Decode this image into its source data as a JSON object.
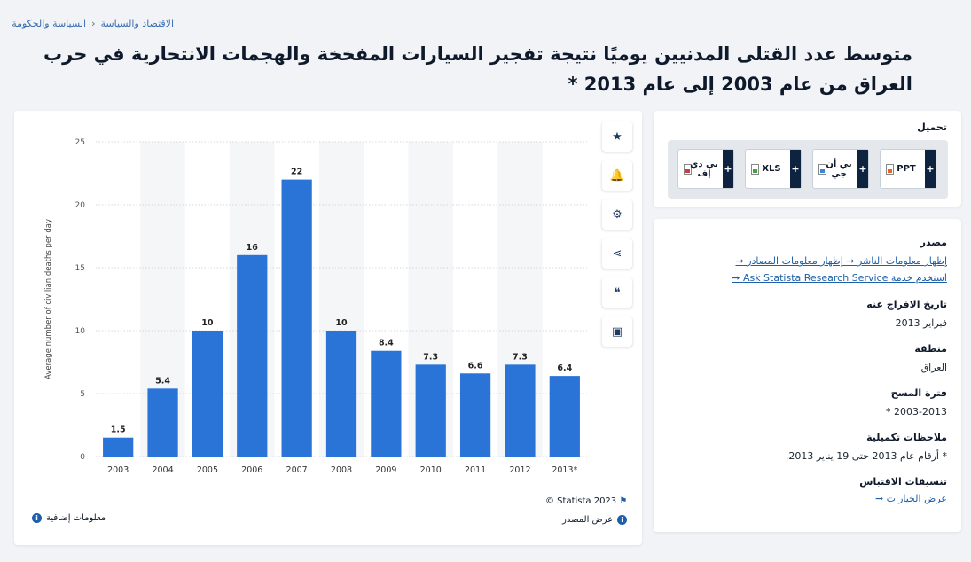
{
  "breadcrumb": {
    "items": [
      "السياسة والحكومة",
      "الاقتصاد والسياسة"
    ],
    "separator": "‹"
  },
  "page": {
    "title": "متوسط عدد القتلى المدنيين يوميًا نتيجة تفجير السيارات المفخخة والهجمات الانتحارية في حرب العراق من عام 2003 إلى عام 2013 *"
  },
  "tools": [
    {
      "icon": "star-icon",
      "glyph": "★"
    },
    {
      "icon": "bell-icon",
      "glyph": "🔔"
    },
    {
      "icon": "gear-icon",
      "glyph": "⚙"
    },
    {
      "icon": "share-icon",
      "glyph": "⋖"
    },
    {
      "icon": "quote-icon",
      "glyph": "❝"
    },
    {
      "icon": "print-icon",
      "glyph": "▣"
    }
  ],
  "chart_data": {
    "type": "bar",
    "categories": [
      "2003",
      "2004",
      "2005",
      "2006",
      "2007",
      "2008",
      "2009",
      "2010",
      "2011",
      "2012",
      "2013*"
    ],
    "values": [
      1.5,
      5.4,
      10,
      16,
      22,
      10,
      8.4,
      7.3,
      6.6,
      7.3,
      6.4
    ],
    "value_labels": [
      "1.5",
      "5.4",
      "10",
      "16",
      "22",
      "10",
      "8.4",
      "7.3",
      "6.6",
      "7.3",
      "6.4"
    ],
    "ylabel": "Average number of civilian deaths per day",
    "xlabel": "",
    "ylim": [
      0,
      25
    ],
    "yticks": [
      0,
      5,
      10,
      15,
      20,
      25
    ],
    "grid": true,
    "bar_color": "#2a74d8"
  },
  "chart_footer": {
    "copyright": "© Statista 2023",
    "show_source": "عرض المصدر",
    "more_info": "معلومات إضافية"
  },
  "download": {
    "title": "تحميل",
    "buttons": [
      {
        "label": "PPT",
        "icon": "ppt-file-icon"
      },
      {
        "label": "بي أن جي",
        "icon": "png-file-icon"
      },
      {
        "label": "XLS",
        "icon": "xls-file-icon"
      },
      {
        "label": "بي دي إف",
        "icon": "pdf-file-icon"
      }
    ]
  },
  "source_panel": {
    "source_heading": "مصدر",
    "publisher_link": "إظهار معلومات الناشر",
    "sources_link": "إظهار معلومات المصادر",
    "research_link": "استخدم خدمة Ask Statista Research Service",
    "release_heading": "تاريخ الافراج عنه",
    "release_value": "فبراير 2013",
    "region_heading": "منطقة",
    "region_value": "العراق",
    "period_heading": "فترة المسح",
    "period_value": "2003-2013 *",
    "notes_heading": "ملاحظات تكميلية",
    "notes_value": "* أرقام عام 2013 حتى 19 يناير 2013.",
    "citation_heading": "تنسيقات الاقتباس",
    "citation_link": "عرض الخيارات",
    "arrow": "➞"
  }
}
